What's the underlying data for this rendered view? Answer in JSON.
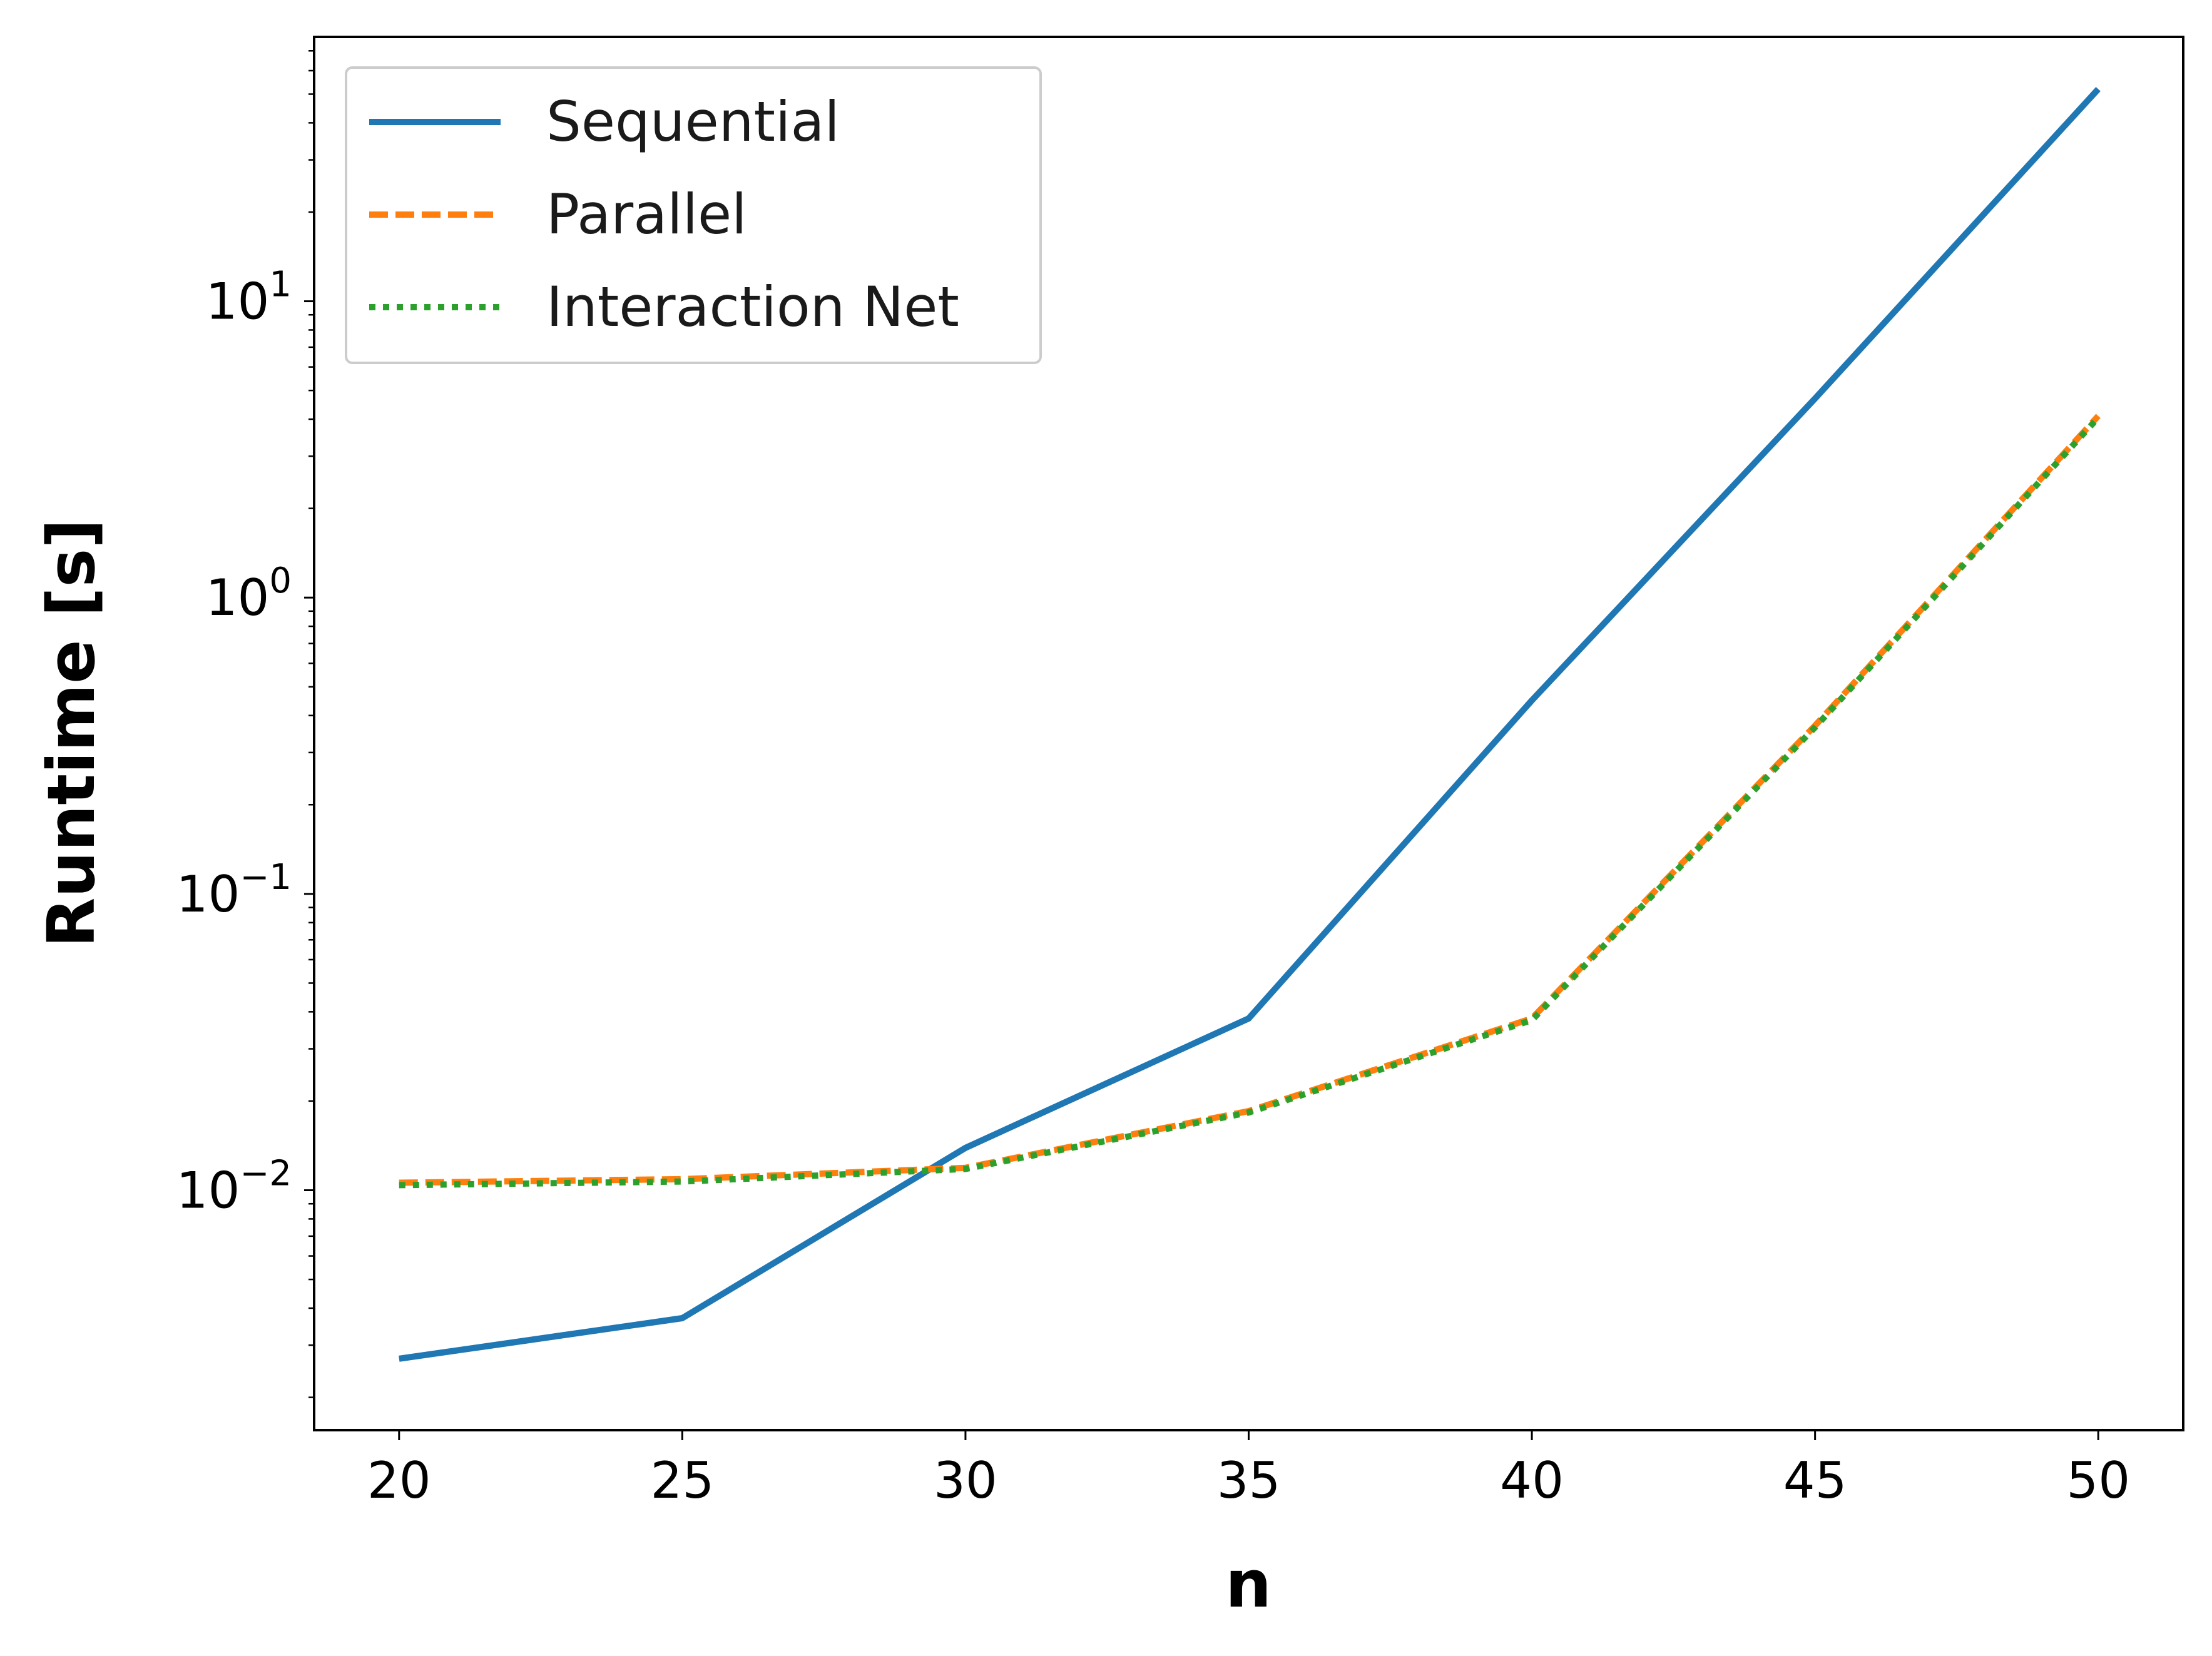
{
  "chart_data": {
    "type": "line",
    "title": "",
    "xlabel": "n",
    "ylabel": "Runtime [s]",
    "x": [
      20,
      25,
      30,
      35,
      40,
      45,
      50
    ],
    "xlim": [
      18.5,
      51.5
    ],
    "ylim": [
      0.00155,
      78
    ],
    "yscale": "log",
    "xticks": [
      20,
      25,
      30,
      35,
      40,
      45,
      50
    ],
    "yticks": [
      {
        "value": 0.01,
        "base": "10",
        "exp": "−2"
      },
      {
        "value": 0.1,
        "base": "10",
        "exp": "−1"
      },
      {
        "value": 1,
        "base": "10",
        "exp": "0"
      },
      {
        "value": 10,
        "base": "10",
        "exp": "1"
      }
    ],
    "grid": false,
    "legend_position": "top-left",
    "series": [
      {
        "name": "Sequential",
        "color": "#1f77b4",
        "style": "solid",
        "values": [
          0.0027,
          0.0037,
          0.0139,
          0.038,
          0.45,
          4.7,
          52
        ]
      },
      {
        "name": "Parallel",
        "color": "#ff7f0e",
        "style": "dashed",
        "values": [
          0.0106,
          0.0109,
          0.0119,
          0.0185,
          0.038,
          0.37,
          4.1
        ]
      },
      {
        "name": "Interaction Net",
        "color": "#2ca02c",
        "style": "dotted",
        "values": [
          0.0104,
          0.0107,
          0.0118,
          0.0183,
          0.0375,
          0.365,
          4.05
        ]
      }
    ]
  }
}
